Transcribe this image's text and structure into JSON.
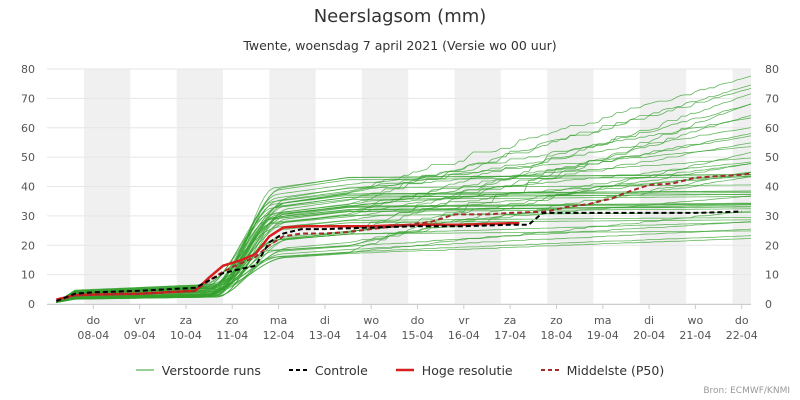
{
  "title": "Neerslagsom (mm)",
  "subtitle": "Twente, woensdag 7 april 2021 (Versie wo 00 uur)",
  "credit": "Bron: ECMWF/KNMI",
  "legend": {
    "ensemble": "Verstoorde runs",
    "control": "Controle",
    "hires": "Hoge resolutie",
    "p50": "Middelste (P50)"
  },
  "colors": {
    "ensemble": "#33a02c",
    "control": "#000000",
    "hires": "#d62020",
    "p50": "#a52a2a",
    "band": "#f0f0f0",
    "grid": "#e6e6e6"
  },
  "chart_data": {
    "type": "line",
    "title": "Neerslagsom (mm)",
    "ylabel": "mm",
    "ylim": [
      0,
      80
    ],
    "yticks": [
      0,
      10,
      20,
      30,
      40,
      50,
      60,
      70,
      80
    ],
    "xlim": [
      0,
      15.2
    ],
    "x_unit": "days since 07-04 00 uur",
    "x_ticks": [
      {
        "x": 1,
        "day": "do",
        "date": "08-04"
      },
      {
        "x": 2,
        "day": "vr",
        "date": "09-04"
      },
      {
        "x": 3,
        "day": "za",
        "date": "10-04"
      },
      {
        "x": 4,
        "day": "zo",
        "date": "11-04"
      },
      {
        "x": 5,
        "day": "ma",
        "date": "12-04"
      },
      {
        "x": 6,
        "day": "di",
        "date": "13-04"
      },
      {
        "x": 7,
        "day": "wo",
        "date": "14-04"
      },
      {
        "x": 8,
        "day": "do",
        "date": "15-04"
      },
      {
        "x": 9,
        "day": "vr",
        "date": "16-04"
      },
      {
        "x": 10,
        "day": "za",
        "date": "17-04"
      },
      {
        "x": 11,
        "day": "zo",
        "date": "18-04"
      },
      {
        "x": 12,
        "day": "ma",
        "date": "19-04"
      },
      {
        "x": 13,
        "day": "di",
        "date": "20-04"
      },
      {
        "x": 14,
        "day": "wo",
        "date": "21-04"
      },
      {
        "x": 15,
        "day": "do",
        "date": "22-04"
      }
    ],
    "shaded_days": [
      [
        0.8,
        1.8
      ],
      [
        2.8,
        3.8
      ],
      [
        4.8,
        5.8
      ],
      [
        6.8,
        7.8
      ],
      [
        8.8,
        9.8
      ],
      [
        10.8,
        11.8
      ],
      [
        12.8,
        13.8
      ],
      [
        14.8,
        15.2
      ]
    ],
    "series": [
      {
        "name": "Controle",
        "style": "dashed",
        "points": [
          [
            0.2,
            1
          ],
          [
            0.6,
            3.5
          ],
          [
            1,
            4
          ],
          [
            2,
            4.5
          ],
          [
            2.6,
            5
          ],
          [
            3.2,
            5.5
          ],
          [
            3.5,
            8
          ],
          [
            3.8,
            10.5
          ],
          [
            4.2,
            12
          ],
          [
            4.5,
            13
          ],
          [
            4.8,
            21
          ],
          [
            5.1,
            24
          ],
          [
            5.5,
            25.5
          ],
          [
            6,
            25.5
          ],
          [
            7,
            26
          ],
          [
            8,
            26.5
          ],
          [
            9,
            26.5
          ],
          [
            10,
            27
          ],
          [
            10.4,
            27
          ],
          [
            10.7,
            31
          ],
          [
            11,
            31
          ],
          [
            12,
            31
          ],
          [
            13,
            31
          ],
          [
            14,
            31
          ],
          [
            15,
            31.5
          ]
        ]
      },
      {
        "name": "Hoge resolutie",
        "style": "solid",
        "points": [
          [
            0.2,
            1.5
          ],
          [
            0.6,
            3
          ],
          [
            1,
            3.2
          ],
          [
            2,
            3.5
          ],
          [
            2.6,
            4
          ],
          [
            3.2,
            4.5
          ],
          [
            3.5,
            9
          ],
          [
            3.8,
            13
          ],
          [
            4.2,
            15
          ],
          [
            4.5,
            17
          ],
          [
            4.8,
            23
          ],
          [
            5.1,
            26
          ],
          [
            5.5,
            26.5
          ],
          [
            6,
            26.5
          ],
          [
            7,
            26.5
          ],
          [
            8,
            27
          ],
          [
            9,
            27
          ],
          [
            10,
            27.5
          ],
          [
            10.2,
            27.5
          ]
        ]
      },
      {
        "name": "Middelste (P50)",
        "style": "dashed",
        "points": [
          [
            0.2,
            1
          ],
          [
            0.6,
            3
          ],
          [
            1,
            3.2
          ],
          [
            2,
            3.5
          ],
          [
            2.6,
            4
          ],
          [
            3.2,
            4.5
          ],
          [
            3.5,
            8
          ],
          [
            3.8,
            11
          ],
          [
            4.2,
            14
          ],
          [
            4.5,
            16
          ],
          [
            4.8,
            20
          ],
          [
            5.1,
            23
          ],
          [
            5.5,
            24
          ],
          [
            6,
            24
          ],
          [
            6.5,
            24.5
          ],
          [
            7,
            25.5
          ],
          [
            7.8,
            27
          ],
          [
            8.3,
            28
          ],
          [
            8.8,
            30.5
          ],
          [
            9.5,
            30.5
          ],
          [
            10,
            31
          ],
          [
            10.8,
            31.5
          ],
          [
            11.2,
            33
          ],
          [
            11.7,
            34
          ],
          [
            12.2,
            36
          ],
          [
            12.6,
            38.5
          ],
          [
            13,
            40.5
          ],
          [
            13.5,
            41
          ],
          [
            14,
            43
          ],
          [
            14.5,
            43.5
          ],
          [
            15,
            44
          ],
          [
            15.2,
            44.5
          ]
        ]
      }
    ],
    "ensemble": {
      "name": "Verstoorde runs",
      "count": 50,
      "final_range": [
        20,
        78
      ],
      "early_plateau_range": [
        1,
        7
      ],
      "mid_plateau_range": [
        17,
        54
      ]
    }
  }
}
